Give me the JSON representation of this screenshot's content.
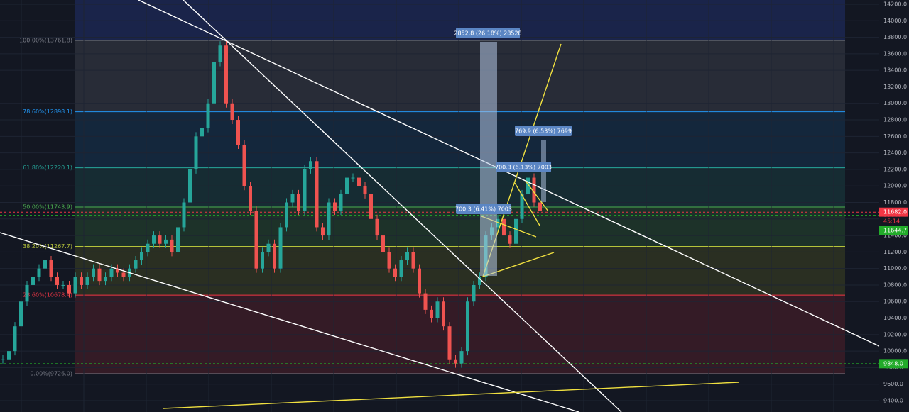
{
  "price_axis": {
    "ylim": [
      9262.6,
      14251.5
    ],
    "ticks": [
      {
        "value": 9400,
        "label": "9400.0"
      },
      {
        "value": 9600,
        "label": "9600.0"
      },
      {
        "value": 9800,
        "label": "9800.0"
      },
      {
        "value": 10000,
        "label": "10000.0"
      },
      {
        "value": 10200,
        "label": "10200.0"
      },
      {
        "value": 10400,
        "label": "10400.0"
      },
      {
        "value": 10600,
        "label": "10600.0"
      },
      {
        "value": 10800,
        "label": "10800.0"
      },
      {
        "value": 11000,
        "label": "11000.0"
      },
      {
        "value": 11200,
        "label": "11200.0"
      },
      {
        "value": 11400,
        "label": "11400.0"
      },
      {
        "value": 11600,
        "label": "11600.0"
      },
      {
        "value": 11800,
        "label": "11800.0"
      },
      {
        "value": 12000,
        "label": "12000.0"
      },
      {
        "value": 12200,
        "label": "12200.0"
      },
      {
        "value": 12400,
        "label": "12400.0"
      },
      {
        "value": 12600,
        "label": "12600.0"
      },
      {
        "value": 12800,
        "label": "12800.0"
      },
      {
        "value": 13000,
        "label": "13000.0"
      },
      {
        "value": 13200,
        "label": "13200.0"
      },
      {
        "value": 13400,
        "label": "13400.0"
      },
      {
        "value": 13600,
        "label": "13600.0"
      },
      {
        "value": 13800,
        "label": "13800.0"
      },
      {
        "value": 14000,
        "label": "14000.0"
      },
      {
        "value": 14200,
        "label": "14200.0"
      }
    ]
  },
  "price_labels": [
    {
      "value": 11682.0,
      "label": "11682.0",
      "color": "#f23645"
    },
    {
      "label": "45:14",
      "color": "#f23645"
    },
    {
      "value": 11644.7,
      "label": "11644.7",
      "color": "#22ab2a"
    },
    {
      "value": 9848.0,
      "label": "9848.0",
      "color": "#22ab2a"
    }
  ],
  "fib_levels": [
    {
      "label": "100.00%(13761.8)",
      "value": 13761.8,
      "color": "#787b86",
      "fill": "rgba(120,123,134,0.22)"
    },
    {
      "label": "78.60%(12898.1)",
      "value": 12898.1,
      "color": "#2196f3",
      "fill": "rgba(33,150,243,0.13)"
    },
    {
      "label": "61.80%(12220.1)",
      "value": 12220.1,
      "color": "#26a69a",
      "fill": "rgba(38,166,154,0.15)"
    },
    {
      "label": "50.00%(11743.9)",
      "value": 11743.9,
      "color": "#4caf50",
      "fill": "rgba(76,175,80,0.18)"
    },
    {
      "label": "38.20%(11267.7)",
      "value": 11267.7,
      "color": "#b5c33a",
      "fill": "rgba(150,160,40,0.18)"
    },
    {
      "label": "23.60%(10678.4)",
      "value": 10678.4,
      "color": "#f23645",
      "fill": "rgba(242,54,69,0.15)"
    },
    {
      "label": "0.00%(9726.0)",
      "value": 9726.0,
      "color": "#787b86",
      "fill": "rgba(0,0,0,0)"
    }
  ],
  "measurements": [
    "2852.8 (26.18%) 28528",
    "769.9 (6.53%) 7699",
    "700.3 (6.13%) 7003",
    "700.3 (6.41%) 7003"
  ],
  "closes": [
    9900,
    10000,
    10300,
    10600,
    10800,
    10900,
    11000,
    11100,
    10900,
    10800,
    10800,
    10700,
    10900,
    10800,
    10900,
    11000,
    10850,
    10900,
    11000,
    10950,
    10900,
    11000,
    11100,
    11200,
    11300,
    11400,
    11300,
    11350,
    11200,
    11500,
    11800,
    12200,
    12600,
    12700,
    13000,
    13500,
    13700,
    13000,
    12800,
    12500,
    12000,
    11700,
    11000,
    11200,
    11300,
    11000,
    11500,
    11800,
    11900,
    11700,
    12200,
    12300,
    11500,
    11400,
    11800,
    11700,
    11900,
    12100,
    12100,
    12000,
    11900,
    11600,
    11400,
    11200,
    11000,
    10900,
    11100,
    11200,
    11000,
    10700,
    10500,
    10400,
    10600,
    10300,
    9900,
    9850,
    10000,
    10600,
    10800,
    10900,
    11400,
    11500,
    11600,
    11400,
    11300,
    11600,
    11900,
    12100,
    11800,
    11700
  ]
}
